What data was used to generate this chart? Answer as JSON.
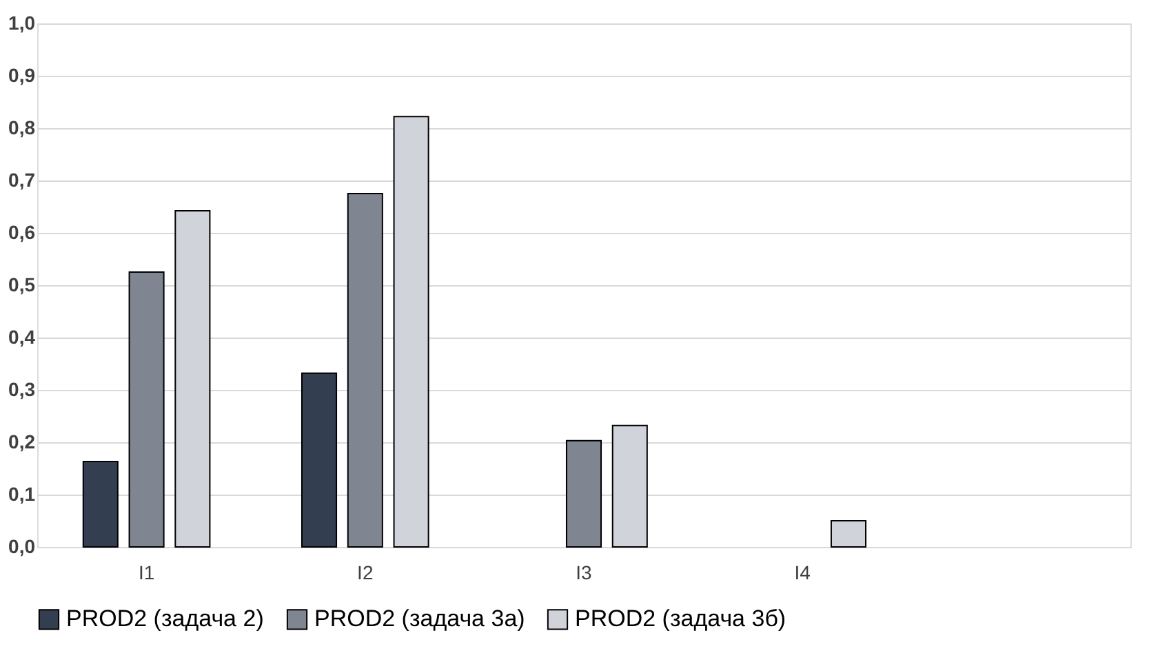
{
  "chart_data": {
    "type": "bar",
    "categories": [
      "I1",
      "I2",
      "I3",
      "I4",
      null
    ],
    "series": [
      {
        "name": "PROD2 (задача 2)",
        "color": "#333f50",
        "values": [
          0.163,
          0.332,
          null,
          null,
          null
        ]
      },
      {
        "name": "PROD2 (задача 3а)",
        "color": "#7f8591",
        "values": [
          0.525,
          0.675,
          0.203,
          null,
          null
        ]
      },
      {
        "name": "PROD2 (задача 3б)",
        "color": "#d0d3d9",
        "values": [
          0.642,
          0.822,
          0.232,
          0.05,
          null
        ]
      }
    ],
    "ylim": [
      0,
      1
    ],
    "yticks": [
      {
        "value": 0,
        "label": "0,0"
      },
      {
        "value": 0.1,
        "label": "0,1"
      },
      {
        "value": 0.2,
        "label": "0,2"
      },
      {
        "value": 0.3,
        "label": "0,3"
      },
      {
        "value": 0.4,
        "label": "0,4"
      },
      {
        "value": 0.5,
        "label": "0,5"
      },
      {
        "value": 0.6,
        "label": "0,6"
      },
      {
        "value": 0.7,
        "label": "0,7"
      },
      {
        "value": 0.8,
        "label": "0,8"
      },
      {
        "value": 0.9,
        "label": "0,9"
      },
      {
        "value": 1.0,
        "label": "1,0"
      }
    ],
    "grid": "y",
    "legend": "bottom"
  }
}
